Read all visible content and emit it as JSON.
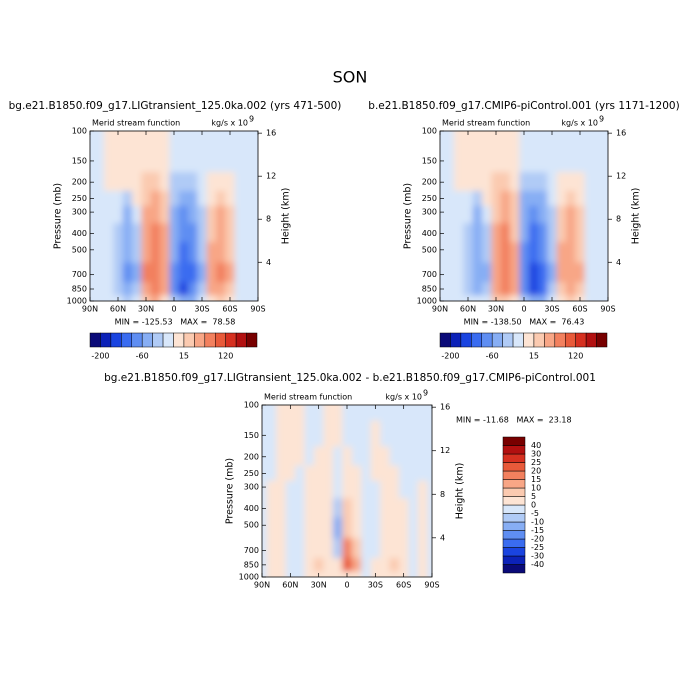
{
  "title": "SON",
  "chart_data": [
    {
      "type": "contour",
      "title": "bg.e21.B1850.f09_g17.LIGtransient_125.0ka.002 (yrs 471-500)",
      "left_label": "Merid stream function",
      "units": "kg/s x 10",
      "units_exponent": "9",
      "annotation": "MIN = -125.53   MAX =  78.58",
      "ylabel": "Pressure (mb)",
      "y2label": "Height (km)",
      "x": [
        90,
        80,
        70,
        60,
        50,
        40,
        30,
        20,
        10,
        0,
        -10,
        -20,
        -30,
        -40,
        -50,
        -60,
        -70,
        -80,
        -90
      ],
      "y": [
        1000,
        850,
        700,
        500,
        400,
        300,
        250,
        200,
        150,
        100
      ],
      "z": [
        [
          -2,
          -5,
          -10,
          -10,
          -20,
          -10,
          20,
          30,
          10,
          -30,
          -60,
          -40,
          -10,
          10,
          20,
          10,
          -10,
          -5,
          -2
        ],
        [
          -2,
          -10,
          -15,
          -20,
          -50,
          -30,
          50,
          78,
          30,
          -80,
          -125,
          -90,
          -30,
          30,
          50,
          20,
          -15,
          -10,
          -2
        ],
        [
          -2,
          -10,
          -15,
          -25,
          -70,
          -40,
          60,
          78,
          40,
          -70,
          -120,
          -100,
          -40,
          30,
          60,
          30,
          -15,
          -10,
          -2
        ],
        [
          -2,
          -10,
          -15,
          -25,
          -60,
          -30,
          50,
          75,
          30,
          -60,
          -100,
          -90,
          -30,
          30,
          50,
          25,
          -15,
          -10,
          -2
        ],
        [
          -2,
          -10,
          -10,
          -20,
          -50,
          -25,
          40,
          70,
          30,
          -50,
          -90,
          -80,
          -30,
          25,
          40,
          20,
          -15,
          -10,
          -2
        ],
        [
          -2,
          -10,
          -10,
          -15,
          -40,
          -15,
          30,
          50,
          20,
          -40,
          -70,
          -60,
          -20,
          15,
          30,
          15,
          -10,
          -10,
          -2
        ],
        [
          -2,
          -10,
          -5,
          -5,
          -20,
          5,
          20,
          40,
          15,
          -30,
          -50,
          -40,
          -15,
          10,
          20,
          10,
          -10,
          -10,
          -2
        ],
        [
          -2,
          -10,
          5,
          5,
          5,
          10,
          15,
          20,
          10,
          -20,
          -30,
          -25,
          -10,
          5,
          10,
          5,
          -10,
          -10,
          -2
        ],
        [
          -2,
          -10,
          5,
          5,
          5,
          5,
          10,
          10,
          5,
          -10,
          -15,
          -15,
          -10,
          -5,
          -5,
          -10,
          -10,
          -10,
          -2
        ],
        [
          -2,
          -5,
          5,
          5,
          5,
          5,
          5,
          5,
          2,
          -5,
          -10,
          -10,
          -10,
          -5,
          -5,
          -5,
          -10,
          -5,
          -2
        ]
      ],
      "xlim": [
        90,
        -90
      ],
      "ylim": [
        1000,
        100
      ],
      "ylog": true,
      "y2lim": [
        0.4,
        16.2
      ],
      "xticks": [
        {
          "value": 90,
          "label": "90N"
        },
        {
          "value": 60,
          "label": "60N"
        },
        {
          "value": 30,
          "label": "30N"
        },
        0,
        {
          "value": -30,
          "label": "30S"
        },
        {
          "value": -60,
          "label": "60S"
        },
        {
          "value": -90,
          "label": "90S"
        }
      ],
      "yticks": [
        100,
        150,
        200,
        250,
        300,
        400,
        500,
        700,
        850,
        1000
      ],
      "y2ticks": [
        4,
        8,
        12,
        16
      ],
      "levels": [
        -200,
        -160,
        -120,
        -90,
        -60,
        -30,
        -15,
        0,
        15,
        30,
        60,
        90,
        120,
        160,
        200
      ],
      "level_ticks": [
        -200,
        -60,
        15,
        120
      ],
      "colorbar": "horizontal",
      "colors": [
        "#0a0a78",
        "#0c22b8",
        "#1a44e0",
        "#3a6cf0",
        "#5f8ef2",
        "#87aef4",
        "#b0cbf6",
        "#d8e7fa",
        "#fde4d4",
        "#fbcab0",
        "#f8a686",
        "#f2805e",
        "#e85a3a",
        "#d63020",
        "#b21010",
        "#780000"
      ]
    },
    {
      "type": "contour",
      "title": "b.e21.B1850.f09_g17.CMIP6-piControl.001 (yrs 1171-1200)",
      "left_label": "Merid stream function",
      "units": "kg/s x 10",
      "units_exponent": "9",
      "annotation": "MIN = -138.50   MAX =  76.43",
      "ylabel": "Pressure (mb)",
      "y2label": "Height (km)",
      "x": [
        90,
        80,
        70,
        60,
        50,
        40,
        30,
        20,
        10,
        0,
        -10,
        -20,
        -30,
        -40,
        -50,
        -60,
        -70,
        -80,
        -90
      ],
      "y": [
        1000,
        850,
        700,
        500,
        400,
        300,
        250,
        200,
        150,
        100
      ],
      "z": [
        [
          -2,
          -5,
          -10,
          -10,
          -15,
          -10,
          15,
          25,
          10,
          -30,
          -60,
          -45,
          -10,
          10,
          15,
          10,
          -10,
          -5,
          -2
        ],
        [
          -2,
          -10,
          -15,
          -20,
          -45,
          -30,
          45,
          75,
          30,
          -90,
          -138,
          -95,
          -30,
          25,
          45,
          20,
          -15,
          -10,
          -2
        ],
        [
          -2,
          -10,
          -15,
          -20,
          -60,
          -35,
          50,
          76,
          40,
          -80,
          -130,
          -100,
          -35,
          30,
          55,
          30,
          -15,
          -10,
          -2
        ],
        [
          -2,
          -10,
          -15,
          -20,
          -55,
          -30,
          45,
          70,
          30,
          -70,
          -110,
          -90,
          -30,
          30,
          50,
          25,
          -15,
          -10,
          -2
        ],
        [
          -2,
          -10,
          -10,
          -20,
          -50,
          -25,
          40,
          60,
          25,
          -60,
          -95,
          -75,
          -25,
          25,
          40,
          20,
          -15,
          -10,
          -2
        ],
        [
          -2,
          -10,
          -10,
          -15,
          -35,
          -15,
          25,
          45,
          20,
          -45,
          -75,
          -55,
          -20,
          15,
          30,
          15,
          -10,
          -10,
          -2
        ],
        [
          -2,
          -10,
          -5,
          -5,
          -20,
          5,
          20,
          35,
          15,
          -35,
          -55,
          -40,
          -15,
          10,
          20,
          10,
          -10,
          -10,
          -2
        ],
        [
          -2,
          -10,
          5,
          5,
          5,
          10,
          15,
          20,
          10,
          -20,
          -30,
          -25,
          -10,
          5,
          10,
          5,
          -10,
          -10,
          -2
        ],
        [
          -2,
          -10,
          5,
          5,
          5,
          5,
          10,
          10,
          5,
          -10,
          -15,
          -15,
          -10,
          -5,
          -5,
          -10,
          -10,
          -10,
          -2
        ],
        [
          -2,
          -5,
          5,
          5,
          5,
          5,
          5,
          5,
          2,
          -5,
          -10,
          -10,
          -10,
          -5,
          -5,
          -5,
          -10,
          -5,
          -2
        ]
      ],
      "xlim": [
        90,
        -90
      ],
      "ylim": [
        1000,
        100
      ],
      "ylog": true,
      "y2lim": [
        0.4,
        16.2
      ],
      "xticks": [
        {
          "value": 90,
          "label": "90N"
        },
        {
          "value": 60,
          "label": "60N"
        },
        {
          "value": 30,
          "label": "30N"
        },
        0,
        {
          "value": -30,
          "label": "30S"
        },
        {
          "value": -60,
          "label": "60S"
        },
        {
          "value": -90,
          "label": "90S"
        }
      ],
      "yticks": [
        100,
        150,
        200,
        250,
        300,
        400,
        500,
        700,
        850,
        1000
      ],
      "y2ticks": [
        4,
        8,
        12,
        16
      ],
      "levels": [
        -200,
        -160,
        -120,
        -90,
        -60,
        -30,
        -15,
        0,
        15,
        30,
        60,
        90,
        120,
        160,
        200
      ],
      "level_ticks": [
        -200,
        -60,
        15,
        120
      ],
      "colorbar": "horizontal",
      "colors": [
        "#0a0a78",
        "#0c22b8",
        "#1a44e0",
        "#3a6cf0",
        "#5f8ef2",
        "#87aef4",
        "#b0cbf6",
        "#d8e7fa",
        "#fde4d4",
        "#fbcab0",
        "#f8a686",
        "#f2805e",
        "#e85a3a",
        "#d63020",
        "#b21010",
        "#780000"
      ]
    },
    {
      "type": "contour",
      "title": "bg.e21.B1850.f09_g17.LIGtransient_125.0ka.002 - b.e21.B1850.f09_g17.CMIP6-piControl.001",
      "left_label": "Merid stream function",
      "units": "kg/s x 10",
      "units_exponent": "9",
      "annotation": "MIN = -11.68   MAX =  23.18",
      "ylabel": "Pressure (mb)",
      "y2label": "Height (km)",
      "x": [
        90,
        80,
        70,
        60,
        50,
        40,
        30,
        20,
        10,
        0,
        -10,
        -20,
        -30,
        -40,
        -50,
        -60,
        -70,
        -80,
        -90
      ],
      "y": [
        1000,
        850,
        700,
        500,
        400,
        300,
        250,
        200,
        150,
        100
      ],
      "z": [
        [
          -2,
          2,
          2,
          -2,
          -2,
          2,
          3,
          3,
          2,
          4,
          2,
          -2,
          2,
          2,
          3,
          2,
          -2,
          2,
          -2
        ],
        [
          -2,
          2,
          2,
          -2,
          -3,
          2,
          5,
          4,
          2,
          23,
          12,
          -3,
          2,
          3,
          5,
          2,
          -2,
          2,
          -2
        ],
        [
          -2,
          2,
          2,
          -2,
          -4,
          2,
          4,
          4,
          -6,
          18,
          8,
          -3,
          -2,
          2,
          4,
          2,
          -2,
          2,
          -2
        ],
        [
          -2,
          2,
          2,
          -2,
          -3,
          2,
          2,
          3,
          -11,
          8,
          4,
          -2,
          -2,
          2,
          3,
          2,
          -2,
          2,
          -2
        ],
        [
          -2,
          2,
          2,
          -2,
          -2,
          2,
          2,
          2,
          -8,
          5,
          3,
          -2,
          -2,
          2,
          2,
          2,
          -2,
          2,
          -2
        ],
        [
          -2,
          2,
          2,
          -2,
          -2,
          2,
          2,
          2,
          -4,
          3,
          2,
          -2,
          -2,
          2,
          2,
          -2,
          -2,
          2,
          -2
        ],
        [
          -2,
          -2,
          2,
          2,
          -2,
          2,
          2,
          2,
          -2,
          2,
          2,
          -2,
          2,
          2,
          2,
          -2,
          -2,
          -2,
          -2
        ],
        [
          -2,
          -2,
          2,
          2,
          2,
          -2,
          2,
          2,
          -2,
          2,
          -2,
          -2,
          2,
          2,
          -2,
          -2,
          -2,
          -2,
          -2
        ],
        [
          -2,
          -2,
          2,
          2,
          2,
          -2,
          -2,
          2,
          2,
          -2,
          -2,
          -2,
          2,
          -2,
          -2,
          -2,
          -2,
          -2,
          -2
        ],
        [
          -2,
          -2,
          2,
          2,
          2,
          -2,
          -2,
          2,
          2,
          -2,
          -2,
          -2,
          -2,
          -2,
          -2,
          -2,
          -2,
          -2,
          -2
        ]
      ],
      "xlim": [
        90,
        -90
      ],
      "ylim": [
        1000,
        100
      ],
      "ylog": true,
      "y2lim": [
        0.4,
        16.2
      ],
      "xticks": [
        {
          "value": 90,
          "label": "90N"
        },
        {
          "value": 60,
          "label": "60N"
        },
        {
          "value": 30,
          "label": "30N"
        },
        0,
        {
          "value": -30,
          "label": "30S"
        },
        {
          "value": -60,
          "label": "60S"
        },
        {
          "value": -90,
          "label": "90S"
        }
      ],
      "yticks": [
        100,
        150,
        200,
        250,
        300,
        400,
        500,
        700,
        850,
        1000
      ],
      "y2ticks": [
        4,
        8,
        12,
        16
      ],
      "levels": [
        -40,
        -30,
        -25,
        -20,
        -15,
        -10,
        -5,
        0,
        5,
        10,
        15,
        20,
        25,
        30,
        40
      ],
      "level_ticks": [
        -40,
        -30,
        -25,
        -20,
        -15,
        -10,
        -5,
        0,
        5,
        10,
        15,
        20,
        25,
        30,
        40
      ],
      "colorbar": "vertical",
      "colors": [
        "#0a0a78",
        "#0c22b8",
        "#1a44e0",
        "#3a6cf0",
        "#5f8ef2",
        "#87aef4",
        "#b0cbf6",
        "#d8e7fa",
        "#fde4d4",
        "#fbcab0",
        "#f8a686",
        "#f2805e",
        "#e85a3a",
        "#d63020",
        "#b21010",
        "#780000"
      ]
    }
  ]
}
